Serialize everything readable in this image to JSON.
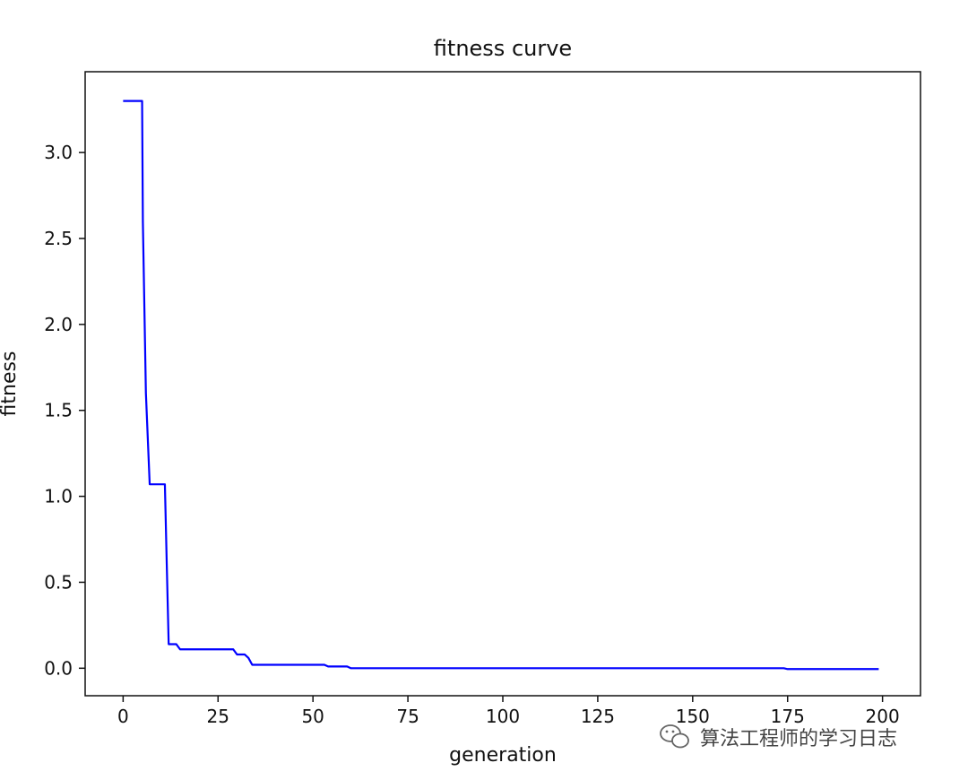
{
  "chart_data": {
    "type": "line",
    "title": "fitness curve",
    "xlabel": "generation",
    "ylabel": "fitness",
    "xlim": [
      -10,
      210
    ],
    "ylim": [
      -0.16,
      3.47
    ],
    "xticks": [
      0,
      25,
      50,
      75,
      100,
      125,
      150,
      175,
      200
    ],
    "yticks": [
      0.0,
      0.5,
      1.0,
      1.5,
      2.0,
      2.5,
      3.0
    ],
    "xtick_labels": [
      "0",
      "25",
      "50",
      "75",
      "100",
      "125",
      "150",
      "175",
      "200"
    ],
    "ytick_labels": [
      "0.0",
      "0.5",
      "1.0",
      "1.5",
      "2.0",
      "2.5",
      "3.0"
    ],
    "grid": false,
    "series": [
      {
        "color": "#0000ff",
        "x": [
          0,
          5,
          5.2,
          6,
          7,
          11,
          11.5,
          12,
          14,
          15,
          29,
          30,
          32,
          33,
          34,
          53,
          54,
          59,
          60,
          174,
          175,
          199
        ],
        "y": [
          3.3,
          3.3,
          2.6,
          1.6,
          1.07,
          1.07,
          0.6,
          0.14,
          0.14,
          0.11,
          0.11,
          0.08,
          0.08,
          0.06,
          0.02,
          0.02,
          0.01,
          0.01,
          0.0,
          0.0,
          -0.005,
          -0.005
        ]
      }
    ]
  },
  "watermark": {
    "icon": "wechat-icon",
    "text": "算法工程师的学习日志"
  }
}
